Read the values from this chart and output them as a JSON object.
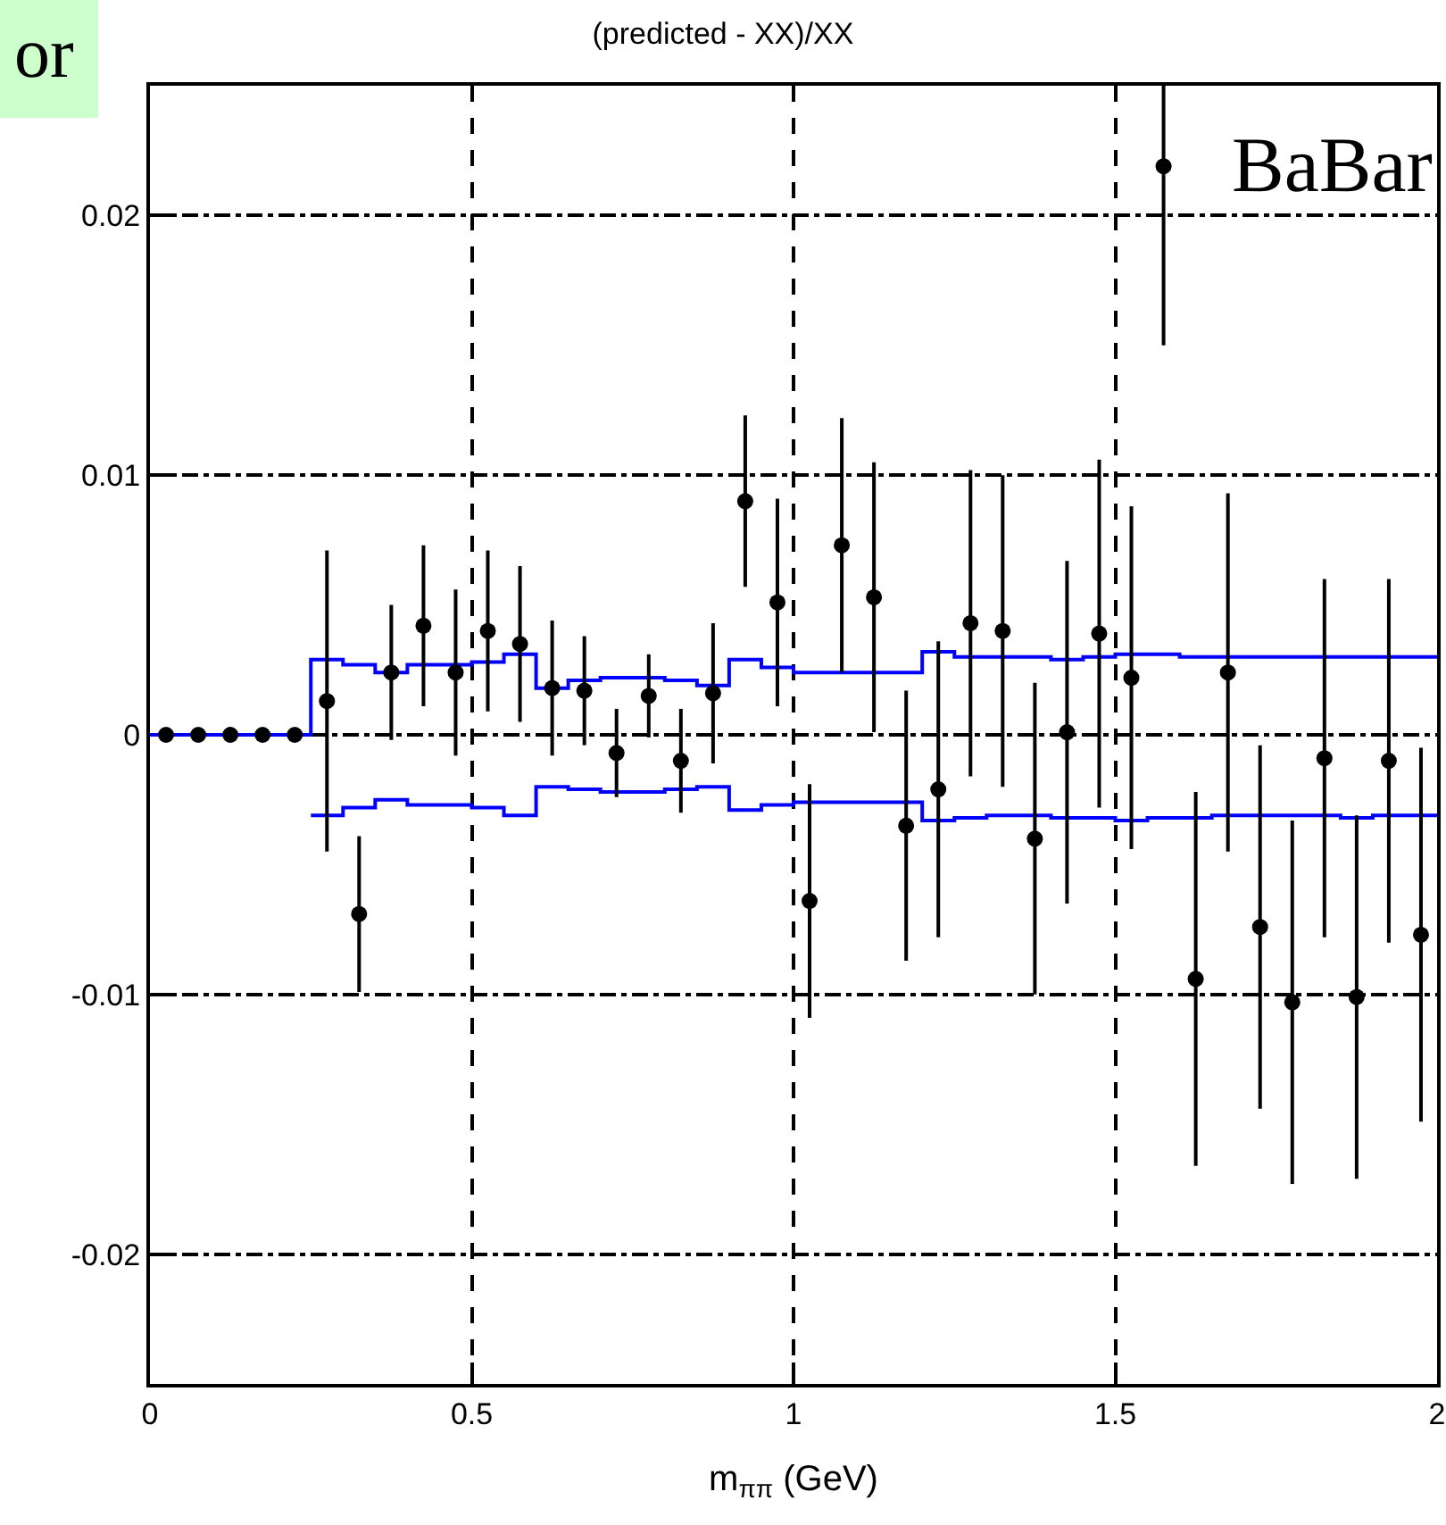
{
  "chart_data": {
    "type": "scatter",
    "title": "(predicted - XX)/XX",
    "xlabel": "m$_{ππ}$ (GeV)",
    "annotations": [
      "BaBar",
      "or"
    ],
    "xlim": [
      0,
      2
    ],
    "xticks": [
      0,
      0.5,
      1,
      1.5,
      2
    ],
    "ylim": [
      -0.025,
      0.025
    ],
    "yticks": [
      -0.02,
      -0.01,
      0,
      0.01,
      0.02
    ],
    "grid": true,
    "legend": false,
    "marker": "circle",
    "series": [
      {
        "type": "step",
        "marker": "none",
        "color": "#0000ff",
        "x": [
          0,
          0.25,
          0.3,
          0.35,
          0.4,
          0.45,
          0.5,
          0.55,
          0.6,
          0.65,
          0.7,
          0.75,
          0.8,
          0.85,
          0.9,
          0.95,
          1.0,
          1.05,
          1.1,
          1.15,
          1.2,
          1.25,
          1.3,
          1.35,
          1.4,
          1.45,
          1.5,
          1.55,
          1.6,
          1.65,
          1.7,
          1.75,
          1.8,
          1.85,
          1.9,
          1.95,
          2.0
        ],
        "values": [
          0,
          0.0029,
          0.0027,
          0.0024,
          0.0027,
          0.0027,
          0.0028,
          0.0031,
          0.0018,
          0.0021,
          0.0022,
          0.0022,
          0.0021,
          0.0019,
          0.0029,
          0.0026,
          0.0024,
          0.0024,
          0.0024,
          0.0024,
          0.0032,
          0.003,
          0.003,
          0.003,
          0.0029,
          0.003,
          0.0031,
          0.0031,
          0.003,
          0.003,
          0.003,
          0.003,
          0.003,
          0.003,
          0.003,
          0.003,
          0.003
        ]
      },
      {
        "type": "step",
        "marker": "none",
        "color": "#0000ff",
        "x": [
          0.25,
          0.3,
          0.35,
          0.4,
          0.45,
          0.5,
          0.55,
          0.6,
          0.65,
          0.7,
          0.75,
          0.8,
          0.85,
          0.9,
          0.95,
          1.0,
          1.05,
          1.1,
          1.15,
          1.2,
          1.25,
          1.3,
          1.35,
          1.4,
          1.45,
          1.5,
          1.55,
          1.6,
          1.65,
          1.7,
          1.75,
          1.8,
          1.85,
          1.9,
          1.95,
          2.0
        ],
        "values": [
          -0.0031,
          -0.0028,
          -0.0025,
          -0.0027,
          -0.0027,
          -0.0028,
          -0.0031,
          -0.002,
          -0.0021,
          -0.0022,
          -0.0022,
          -0.0021,
          -0.002,
          -0.0029,
          -0.0027,
          -0.0026,
          -0.0026,
          -0.0026,
          -0.0026,
          -0.0033,
          -0.0032,
          -0.0031,
          -0.0031,
          -0.0032,
          -0.0032,
          -0.0033,
          -0.0032,
          -0.0032,
          -0.0031,
          -0.0031,
          -0.0031,
          -0.0031,
          -0.0032,
          -0.0031,
          -0.0031,
          -0.0031
        ]
      },
      {
        "color": "#000000",
        "x": [
          0.025,
          0.075,
          0.125,
          0.175,
          0.225,
          0.275,
          0.325,
          0.375,
          0.425,
          0.475,
          0.525,
          0.575,
          0.625,
          0.675,
          0.725,
          0.775,
          0.825,
          0.875,
          0.925,
          0.975,
          1.025,
          1.075,
          1.125,
          1.175,
          1.225,
          1.275,
          1.325,
          1.375,
          1.425,
          1.475,
          1.525,
          1.575,
          1.625,
          1.675,
          1.725,
          1.775,
          1.825,
          1.875,
          1.925,
          1.975
        ],
        "values": [
          0,
          0,
          0,
          0,
          0,
          0.0013,
          -0.0069,
          0.0024,
          0.0042,
          0.0024,
          0.004,
          0.0035,
          0.0018,
          0.0017,
          -0.0007,
          0.0015,
          -0.001,
          0.0016,
          0.009,
          0.0051,
          -0.0064,
          0.0073,
          0.0053,
          -0.0035,
          -0.0021,
          0.0043,
          0.004,
          -0.004,
          0.0001,
          0.0039,
          0.0022,
          0.0219,
          -0.0094,
          0.0024,
          -0.0074,
          -0.0103,
          -0.0009,
          -0.0101,
          -0.001,
          -0.0077
        ],
        "errors": [
          null,
          null,
          null,
          null,
          null,
          0.0058,
          0.003,
          0.0026,
          0.0031,
          0.0032,
          0.0031,
          0.003,
          0.0026,
          0.0021,
          0.0017,
          0.0016,
          0.002,
          0.0027,
          0.0033,
          0.004,
          0.0045,
          0.0049,
          0.0052,
          0.0052,
          0.0057,
          0.0059,
          0.006,
          0.006,
          0.0066,
          0.0067,
          0.0066,
          [
            0.015,
            0.025
          ],
          0.0072,
          0.0069,
          0.007,
          0.007,
          0.0069,
          0.007,
          0.007,
          0.0072
        ]
      }
    ]
  }
}
